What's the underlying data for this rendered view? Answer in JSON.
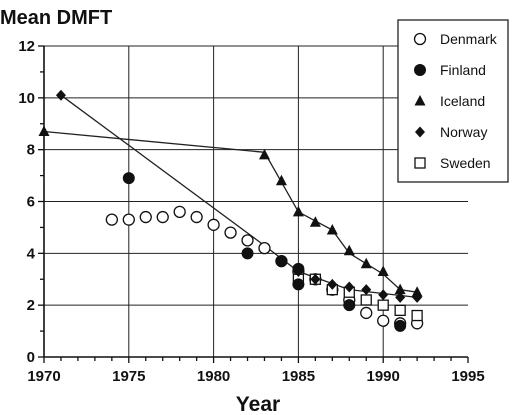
{
  "chart_data": {
    "type": "scatter",
    "title": "",
    "ylabel": "Mean DMFT",
    "xlabel": "Year",
    "xlim": [
      1970,
      1995
    ],
    "ylim": [
      0,
      12
    ],
    "xticks": [
      1970,
      1975,
      1980,
      1985,
      1990,
      1995
    ],
    "yticks": [
      0,
      2,
      4,
      6,
      8,
      10,
      12
    ],
    "grid": true,
    "legend_position": "top-right",
    "series": [
      {
        "name": "Denmark",
        "marker": "open-circle",
        "points": [
          [
            1974,
            5.3
          ],
          [
            1975,
            5.3
          ],
          [
            1976,
            5.4
          ],
          [
            1977,
            5.4
          ],
          [
            1978,
            5.6
          ],
          [
            1979,
            5.4
          ],
          [
            1980,
            5.1
          ],
          [
            1981,
            4.8
          ],
          [
            1982,
            4.5
          ],
          [
            1983,
            4.2
          ],
          [
            1984,
            3.7
          ],
          [
            1985,
            3.3
          ],
          [
            1986,
            3.0
          ],
          [
            1987,
            2.6
          ],
          [
            1988,
            2.2
          ],
          [
            1989,
            1.7
          ],
          [
            1990,
            1.4
          ],
          [
            1991,
            1.3
          ],
          [
            1992,
            1.3
          ]
        ]
      },
      {
        "name": "Finland",
        "marker": "filled-circle",
        "points": [
          [
            1975,
            6.9
          ],
          [
            1982,
            4.0
          ],
          [
            1984,
            3.7
          ],
          [
            1985,
            3.4
          ],
          [
            1985,
            2.8
          ],
          [
            1988,
            2.0
          ],
          [
            1991,
            1.2
          ]
        ]
      },
      {
        "name": "Iceland",
        "marker": "filled-triangle",
        "points": [
          [
            1970,
            8.7
          ],
          [
            1983,
            7.8
          ],
          [
            1984,
            6.8
          ],
          [
            1985,
            5.6
          ],
          [
            1986,
            5.2
          ],
          [
            1987,
            4.9
          ],
          [
            1988,
            4.1
          ],
          [
            1989,
            3.6
          ],
          [
            1990,
            3.3
          ],
          [
            1991,
            2.6
          ],
          [
            1992,
            2.5
          ]
        ]
      },
      {
        "name": "Norway",
        "marker": "filled-diamond",
        "points": [
          [
            1971,
            10.1
          ],
          [
            1984,
            3.7
          ],
          [
            1985,
            3.3
          ],
          [
            1986,
            3.0
          ],
          [
            1987,
            2.8
          ],
          [
            1988,
            2.7
          ],
          [
            1989,
            2.6
          ],
          [
            1990,
            2.4
          ],
          [
            1991,
            2.3
          ],
          [
            1992,
            2.3
          ]
        ]
      },
      {
        "name": "Sweden",
        "marker": "open-square",
        "points": [
          [
            1985,
            3.0
          ],
          [
            1986,
            3.0
          ],
          [
            1987,
            2.6
          ],
          [
            1988,
            2.5
          ],
          [
            1989,
            2.2
          ],
          [
            1990,
            2.0
          ],
          [
            1991,
            1.8
          ],
          [
            1992,
            1.6
          ]
        ]
      }
    ],
    "trend_lines": [
      {
        "series": "Iceland",
        "points": [
          [
            1970,
            8.7
          ],
          [
            1983,
            7.9
          ],
          [
            1985,
            5.6
          ],
          [
            1987,
            4.9
          ],
          [
            1988,
            4.0
          ],
          [
            1990,
            3.2
          ],
          [
            1991,
            2.6
          ],
          [
            1992,
            2.5
          ]
        ]
      },
      {
        "series": "Norway",
        "points": [
          [
            1971,
            10.1
          ],
          [
            1983,
            4.3
          ],
          [
            1985,
            3.3
          ],
          [
            1988,
            2.6
          ],
          [
            1992,
            2.3
          ]
        ]
      }
    ]
  }
}
